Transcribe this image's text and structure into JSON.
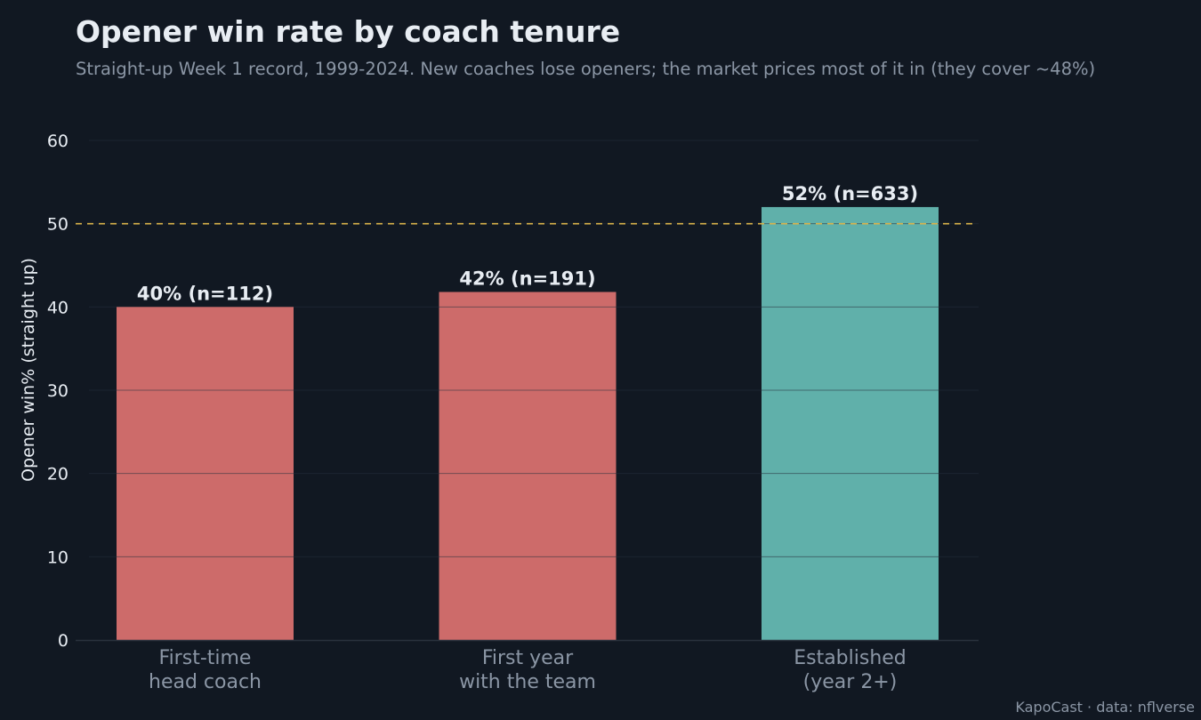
{
  "header": {
    "title": "Opener win rate by coach tenure",
    "subtitle": "Straight-up Week 1 record, 1999-2024. New coaches lose openers; the market prices most of it in (they cover ~48%)"
  },
  "footer": {
    "credit": "KapoCast · data: nflverse"
  },
  "colors": {
    "background": "#111822",
    "new_coach_bar": "#cd6b6a",
    "established_bar": "#60b0aa",
    "reference_line": "#d9b24a",
    "text": "#e8edf3",
    "muted_text": "#8b96a5"
  },
  "chart_data": {
    "type": "bar",
    "categories": [
      [
        "First-time",
        "head coach"
      ],
      [
        "First year",
        "with the team"
      ],
      [
        "Established",
        "(year 2+)"
      ]
    ],
    "values": [
      40,
      41.8,
      52
    ],
    "data_labels": [
      "40%  (n=112)",
      "42%  (n=191)",
      "52%  (n=633)"
    ],
    "bar_colors": [
      "#cd6b6a",
      "#cd6b6a",
      "#60b0aa"
    ],
    "ylabel": "Opener win% (straight up)",
    "xlabel": "",
    "ylim": [
      0,
      60
    ],
    "yticks": [
      0,
      10,
      20,
      30,
      40,
      50,
      60
    ],
    "reference_line": {
      "y": 50,
      "style": "dashed"
    },
    "grid": true
  }
}
